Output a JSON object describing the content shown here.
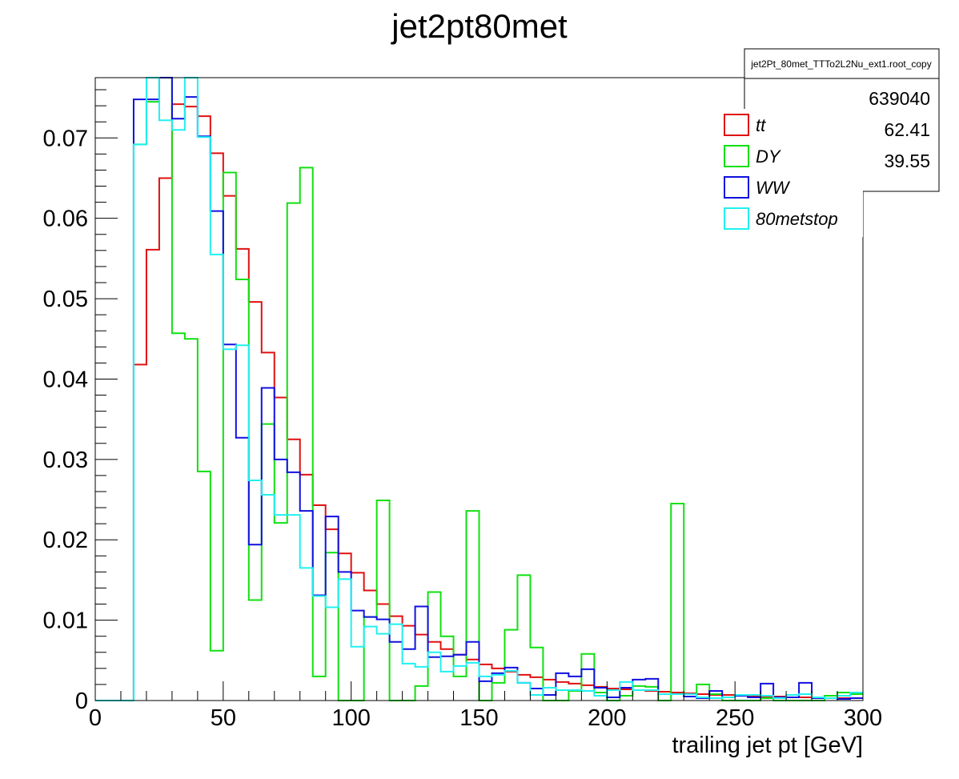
{
  "chart_data": {
    "type": "histogram",
    "title": "jet2pt80met",
    "xlabel": "trailing jet pt [GeV]",
    "ylabel": "",
    "xlim": [
      0,
      300
    ],
    "ylim": [
      0,
      0.0775
    ],
    "bin_width": 5,
    "x_ticks": [
      0,
      50,
      100,
      150,
      200,
      250,
      300
    ],
    "x_tick_labels": [
      "0",
      "50",
      "100",
      "150",
      "200",
      "250",
      "300"
    ],
    "y_ticks": [
      0,
      0.01,
      0.02,
      0.03,
      0.04,
      0.05,
      0.06,
      0.07
    ],
    "y_tick_labels": [
      "0",
      "0.01",
      "0.02",
      "0.03",
      "0.04",
      "0.05",
      "0.06",
      "0.07"
    ],
    "grid": false,
    "legend_position": "top-right",
    "series": [
      {
        "name": "tt",
        "color": "#e01010",
        "values": [
          0,
          0,
          0,
          0.0418,
          0.0561,
          0.065,
          0.0742,
          0.0739,
          0.0727,
          0.0681,
          0.0628,
          0.0562,
          0.0496,
          0.0433,
          0.0377,
          0.0325,
          0.0281,
          0.0243,
          0.0213,
          0.0183,
          0.0159,
          0.0137,
          0.012,
          0.0105,
          0.0093,
          0.0082,
          0.0073,
          0.0064,
          0.0057,
          0.0051,
          0.0045,
          0.004,
          0.0036,
          0.0032,
          0.0029,
          0.0026,
          0.0023,
          0.0021,
          0.0019,
          0.0017,
          0.0015,
          0.0014,
          0.0013,
          0.0012,
          0.0011,
          0.001,
          0.0009,
          0.0008,
          0.0007,
          0.0007,
          0.0006,
          0.0006,
          0.0005,
          0.0005,
          0.0004,
          0.0004,
          0.0004,
          0.0003,
          0.0003,
          0.0003
        ]
      },
      {
        "name": "DY",
        "color": "#10e010",
        "values": [
          0,
          0,
          0,
          0.0692,
          0.0745,
          0.0775,
          0.0457,
          0.045,
          0.0285,
          0.0062,
          0.0657,
          0.0524,
          0.0125,
          0.0344,
          0.0221,
          0.0619,
          0.0663,
          0.003,
          0.0184,
          0.0,
          0.0,
          0.0104,
          0.0249,
          0.0,
          0.0,
          0.0018,
          0.0135,
          0.008,
          0.003,
          0.0236,
          0.0,
          0.0022,
          0.0088,
          0.0156,
          0.0066,
          0.0,
          0.0,
          0.0012,
          0.0058,
          0.001,
          0.0,
          0.0006,
          0.0018,
          0.0017,
          0.0,
          0.0245,
          0.0008,
          0.002,
          0.0008,
          0.0,
          0.0,
          0.0,
          0.0003,
          0.0,
          0.0,
          0.0,
          0.0,
          0.0006,
          0.001,
          0.0008
        ]
      },
      {
        "name": "WW",
        "color": "#1010e0",
        "values": [
          0,
          0,
          0,
          0.0748,
          0.0748,
          0.0775,
          0.0724,
          0.0751,
          0.0702,
          0.0609,
          0.0443,
          0.0327,
          0.0194,
          0.0389,
          0.03,
          0.0284,
          0.0236,
          0.0131,
          0.0229,
          0.016,
          0.0112,
          0.0104,
          0.0101,
          0.0073,
          0.0064,
          0.0117,
          0.0054,
          0.0055,
          0.0057,
          0.0073,
          0.0024,
          0.0034,
          0.0041,
          0.0022,
          0.0015,
          0.0007,
          0.0034,
          0.003,
          0.0039,
          0.0016,
          0.0004,
          0.0016,
          0.0026,
          0.0027,
          0.0008,
          0.0008,
          0.0005,
          0.0003,
          0.0012,
          0.0004,
          0.0006,
          0.0004,
          0.0021,
          0.0004,
          0.0004,
          0.0022,
          0.0003,
          0.0003,
          0.0002,
          0.0003
        ]
      },
      {
        "name": "80metstop",
        "color": "#20f0f0",
        "values": [
          0,
          0,
          0,
          0.0692,
          0.0775,
          0.0722,
          0.071,
          0.0775,
          0.0701,
          0.0555,
          0.0437,
          0.0442,
          0.0274,
          0.0256,
          0.0231,
          0.0231,
          0.0165,
          0.013,
          0.0116,
          0.0151,
          0.0067,
          0.0092,
          0.0083,
          0.0095,
          0.0046,
          0.0042,
          0.006,
          0.0036,
          0.0043,
          0.0047,
          0.003,
          0.0032,
          0.0037,
          0.0022,
          0.0007,
          0.0016,
          0.0013,
          0.0013,
          0.0012,
          0.0006,
          0.0013,
          0.0023,
          0.0013,
          0.0013,
          0.0008,
          0.0008,
          0.0008,
          0.0004,
          0.0003,
          0.0004,
          0.0007,
          0.0007,
          0.0006,
          0.0003,
          0.0007,
          0.0008,
          0.0004,
          0.0003,
          0.0006,
          0.001
        ]
      }
    ],
    "stats_box": {
      "title": "jet2Pt_80met_TTTo2L2Nu_ext1.root_copy",
      "values": [
        "639040",
        "62.41",
        "39.55"
      ]
    }
  }
}
